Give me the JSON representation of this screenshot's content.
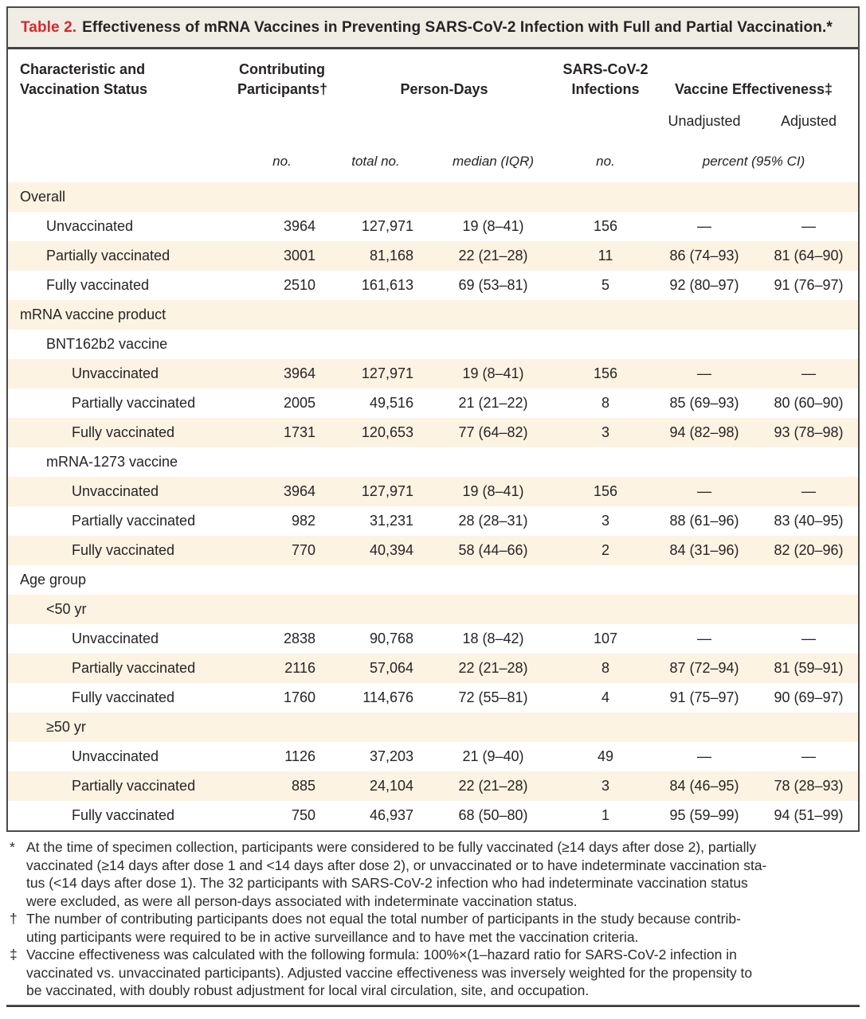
{
  "title": {
    "label": "Table 2.",
    "text": "Effectiveness of mRNA Vaccines in Preventing SARS-CoV-2 Infection with Full and Partial Vaccination.*"
  },
  "header": {
    "col_characteristic": "Characteristic and Vaccination Status",
    "col_participants": "Contributing Participants†",
    "col_person_days": "Person-Days",
    "col_infections": "SARS-CoV-2 Infections",
    "col_effectiveness": "Vaccine Effectiveness‡",
    "sub_unadjusted": "Unadjusted",
    "sub_adjusted": "Adjusted",
    "unit_no": "no.",
    "unit_total_no": "total no.",
    "unit_median_iqr": "median (IQR)",
    "unit_no_infections": "no.",
    "unit_percent_ci": "percent (95% CI)"
  },
  "table": {
    "rows": [
      {
        "label": "Overall",
        "indent": 0
      },
      {
        "label": "Unvaccinated",
        "indent": 1,
        "cells": [
          "3964",
          "127,971",
          "19 (8–41)",
          "156",
          "—",
          "—"
        ]
      },
      {
        "label": "Partially vaccinated",
        "indent": 1,
        "cells": [
          "3001",
          "81,168",
          "22 (21–28)",
          "11",
          "86 (74–93)",
          "81 (64–90)"
        ]
      },
      {
        "label": "Fully vaccinated",
        "indent": 1,
        "cells": [
          "2510",
          "161,613",
          "69 (53–81)",
          "5",
          "92 (80–97)",
          "91 (76–97)"
        ]
      },
      {
        "label": "mRNA vaccine product",
        "indent": 0
      },
      {
        "label": "BNT162b2 vaccine",
        "indent": 1
      },
      {
        "label": "Unvaccinated",
        "indent": 2,
        "cells": [
          "3964",
          "127,971",
          "19 (8–41)",
          "156",
          "—",
          "—"
        ]
      },
      {
        "label": "Partially vaccinated",
        "indent": 2,
        "cells": [
          "2005",
          "49,516",
          "21 (21–22)",
          "8",
          "85 (69–93)",
          "80 (60–90)"
        ]
      },
      {
        "label": "Fully vaccinated",
        "indent": 2,
        "cells": [
          "1731",
          "120,653",
          "77 (64–82)",
          "3",
          "94 (82–98)",
          "93 (78–98)"
        ]
      },
      {
        "label": "mRNA-1273 vaccine",
        "indent": 1
      },
      {
        "label": "Unvaccinated",
        "indent": 2,
        "cells": [
          "3964",
          "127,971",
          "19 (8–41)",
          "156",
          "—",
          "—"
        ]
      },
      {
        "label": "Partially vaccinated",
        "indent": 2,
        "cells": [
          "982",
          "31,231",
          "28 (28–31)",
          "3",
          "88 (61–96)",
          "83 (40–95)"
        ]
      },
      {
        "label": "Fully vaccinated",
        "indent": 2,
        "cells": [
          "770",
          "40,394",
          "58 (44–66)",
          "2",
          "84 (31–96)",
          "82 (20–96)"
        ]
      },
      {
        "label": "Age group",
        "indent": 0
      },
      {
        "label": "<50 yr",
        "indent": 1
      },
      {
        "label": "Unvaccinated",
        "indent": 2,
        "cells": [
          "2838",
          "90,768",
          "18 (8–42)",
          "107",
          "—",
          "—"
        ]
      },
      {
        "label": "Partially vaccinated",
        "indent": 2,
        "cells": [
          "2116",
          "57,064",
          "22 (21–28)",
          "8",
          "87 (72–94)",
          "81 (59–91)"
        ]
      },
      {
        "label": "Fully vaccinated",
        "indent": 2,
        "cells": [
          "1760",
          "114,676",
          "72 (55–81)",
          "4",
          "91 (75–97)",
          "90 (69–97)"
        ]
      },
      {
        "label": "≥50 yr",
        "indent": 1
      },
      {
        "label": "Unvaccinated",
        "indent": 2,
        "cells": [
          "1126",
          "37,203",
          "21 (9–40)",
          "49",
          "—",
          "—"
        ]
      },
      {
        "label": "Partially vaccinated",
        "indent": 2,
        "cells": [
          "885",
          "24,104",
          "22 (21–28)",
          "3",
          "84 (46–95)",
          "78 (28–93)"
        ]
      },
      {
        "label": "Fully vaccinated",
        "indent": 2,
        "cells": [
          "750",
          "46,937",
          "68 (50–80)",
          "1",
          "95 (59–99)",
          "94 (51–99)"
        ]
      }
    ]
  },
  "footnotes": [
    {
      "marker": "*",
      "lines": [
        "At the time of specimen collection, participants were considered to be fully vaccinated (≥14 days after dose 2), partially",
        "vaccinated (≥14 days after dose 1 and <14 days after dose 2), or unvaccinated or to have indeterminate vaccination sta-",
        "tus (<14 days after dose 1). The 32 participants with SARS-CoV-2 infection who had indeterminate vaccination status",
        "were excluded, as were all person-days associated with indeterminate vaccination status."
      ]
    },
    {
      "marker": "†",
      "lines": [
        "The number of contributing participants does not equal the total number of participants in the study because contrib-",
        "uting participants were required to be in active surveillance and to have met the vaccination criteria."
      ]
    },
    {
      "marker": "‡",
      "lines": [
        "Vaccine effectiveness was calculated with the following formula: 100%×(1–hazard ratio for SARS-CoV-2 infection in",
        "vaccinated vs. unvaccinated participants). Adjusted vaccine effectiveness was inversely weighted for the propensity to",
        "be vaccinated, with doubly robust adjustment for local viral circulation, site, and occupation."
      ]
    }
  ],
  "colors": {
    "accent_red": "#d7282f",
    "stripe": "#fcf3e2",
    "title_bg": "#f0ede4",
    "ink": "#272325",
    "rule": "#4a4a4c"
  }
}
